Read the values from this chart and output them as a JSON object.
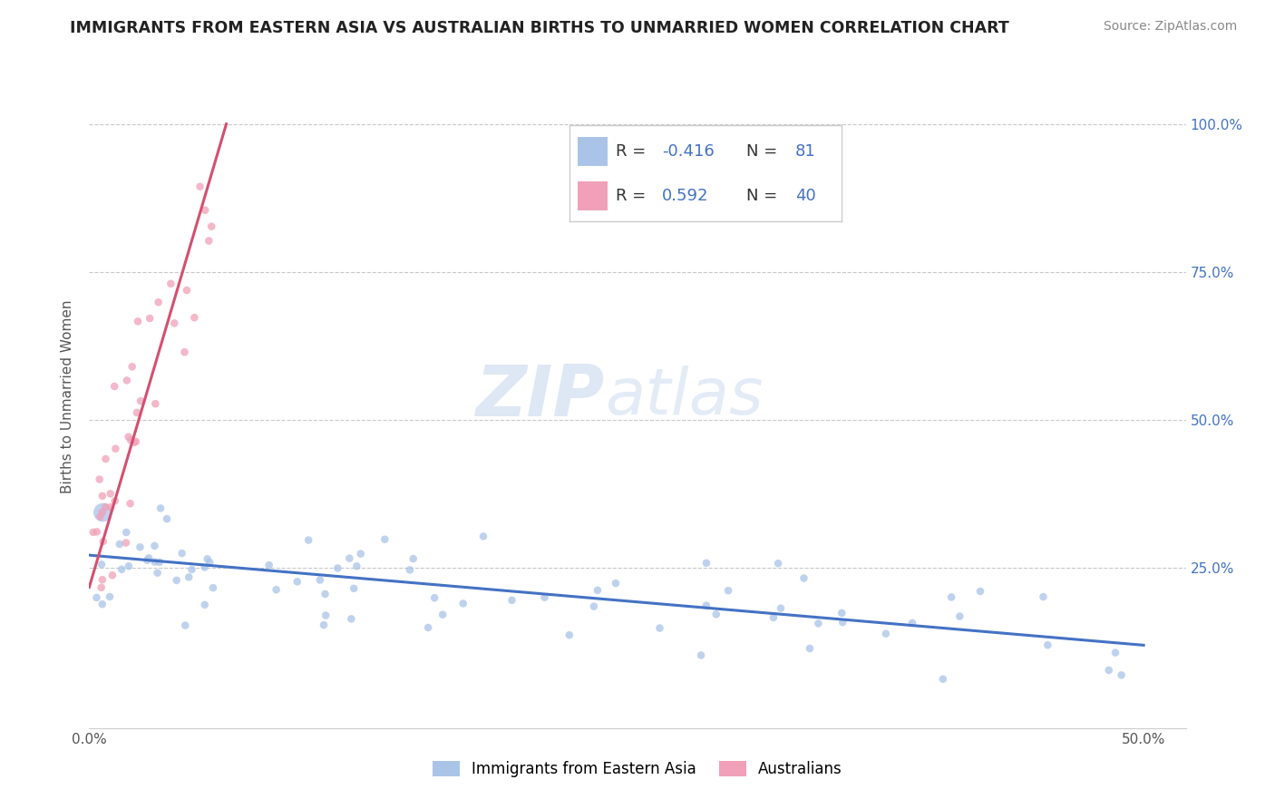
{
  "title": "IMMIGRANTS FROM EASTERN ASIA VS AUSTRALIAN BIRTHS TO UNMARRIED WOMEN CORRELATION CHART",
  "source": "Source: ZipAtlas.com",
  "ylabel": "Births to Unmarried Women",
  "legend_labels": [
    "Immigrants from Eastern Asia",
    "Australians"
  ],
  "r_blue": -0.416,
  "n_blue": 81,
  "r_pink": 0.592,
  "n_pink": 40,
  "xlim": [
    0.0,
    0.52
  ],
  "ylim": [
    -0.02,
    1.1
  ],
  "xticks": [
    0.0,
    0.5
  ],
  "xticklabels": [
    "0.0%",
    "50.0%"
  ],
  "yticks": [
    0.25,
    0.5,
    0.75,
    1.0
  ],
  "yticklabels": [
    "25.0%",
    "50.0%",
    "75.0%",
    "100.0%"
  ],
  "watermark_zip": "ZIP",
  "watermark_atlas": "atlas",
  "background_color": "#ffffff",
  "grid_color": "#bbbbbb",
  "blue_color": "#aac4e8",
  "pink_color": "#f0a0b8",
  "blue_line_color": "#4472c4",
  "pink_line_color": "#d45070",
  "title_color": "#222222",
  "blue_line_x": [
    0.0,
    0.5
  ],
  "blue_line_y": [
    0.272,
    0.12
  ],
  "pink_line_x": [
    0.0,
    0.065
  ],
  "pink_line_y": [
    0.218,
    1.0
  ]
}
